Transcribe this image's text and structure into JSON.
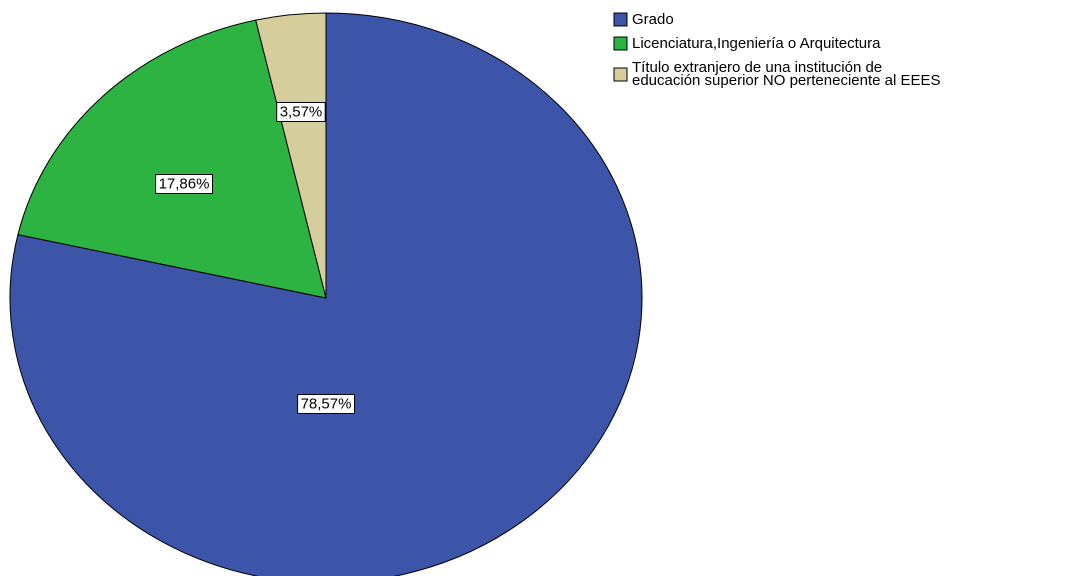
{
  "chart_data": {
    "type": "pie",
    "start_angle_deg": 0,
    "direction": "clockwise",
    "slices": [
      {
        "label": "Grado",
        "value": 78.57,
        "display": "78,57%",
        "color": "#3c55a8"
      },
      {
        "label": "Licenciatura,Ingeniería o Arquitectura",
        "value": 17.86,
        "display": "17,86%",
        "color": "#2cb342"
      },
      {
        "label": "Título extranjero de una institución de educación superior NO perteneciente al EEES",
        "value": 3.57,
        "display": "3,57%",
        "color": "#d6cd9c"
      }
    ],
    "legend": {
      "placement": "top-right",
      "entries": [
        {
          "lines": [
            "Grado"
          ]
        },
        {
          "lines": [
            "Licenciatura,Ingeniería o Arquitectura"
          ]
        },
        {
          "lines": [
            "Título extranjero de una institución de",
            "educación superior NO perteneciente al EEES"
          ]
        }
      ]
    }
  }
}
